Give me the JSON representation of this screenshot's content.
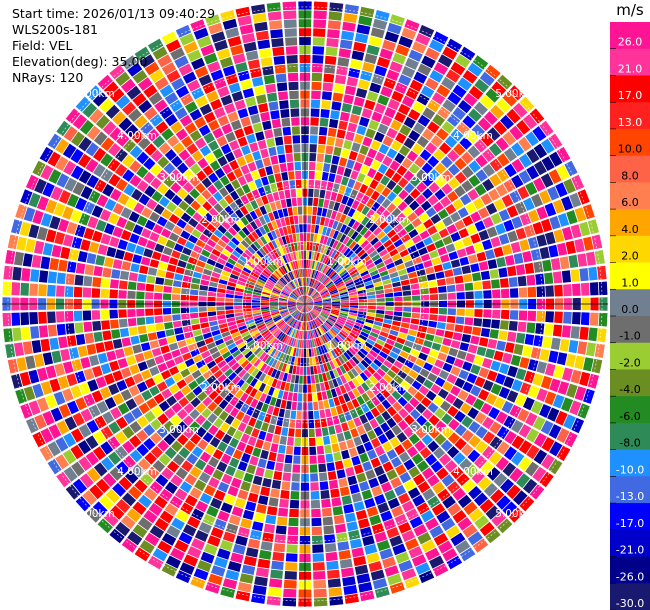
{
  "info": {
    "start_time": "Start time: 2026/01/13 09:40:29",
    "instrument": "WLS200s-181",
    "field": "Field: VEL",
    "elevation": "Elevation(deg): 35.00",
    "nrays": "NRays: 120"
  },
  "colorbar": {
    "unit": "m/s",
    "ticks": [
      "26.0",
      "21.0",
      "17.0",
      "13.0",
      "10.0",
      "8.0",
      "6.0",
      "4.0",
      "2.0",
      "1.0",
      "0.0",
      "-1.0",
      "-2.0",
      "-4.0",
      "-6.0",
      "-8.0",
      "-10.0",
      "-13.0",
      "-17.0",
      "-21.0",
      "-26.0",
      "-30.0"
    ],
    "colors": [
      "#ff1493",
      "#ff3399",
      "#ff0000",
      "#ff2020",
      "#ff4500",
      "#ff6347",
      "#ff7f50",
      "#ffa500",
      "#ffd700",
      "#ffff00",
      "#708090",
      "#6e6e6e",
      "#9acd32",
      "#6b8e23",
      "#228b22",
      "#2e8b57",
      "#1e90ff",
      "#4169e1",
      "#0000ff",
      "#0000cd",
      "#00008b",
      "#191970"
    ]
  },
  "chart_data": {
    "type": "heatmap",
    "projection": "polar-ppi",
    "field": "VEL",
    "unit": "m/s",
    "nrays": 120,
    "ring_labels": [
      {
        "text": "1.00km",
        "range_km": 1
      },
      {
        "text": "2.00km",
        "range_km": 2
      },
      {
        "text": "3.00km",
        "range_km": 3
      },
      {
        "text": "4.00km",
        "range_km": 4
      },
      {
        "text": "5.00km",
        "range_km": 5
      }
    ],
    "max_range_km": 5.1,
    "value_range": [
      -30,
      30
    ],
    "pattern": "mostly noisy velocity data"
  }
}
